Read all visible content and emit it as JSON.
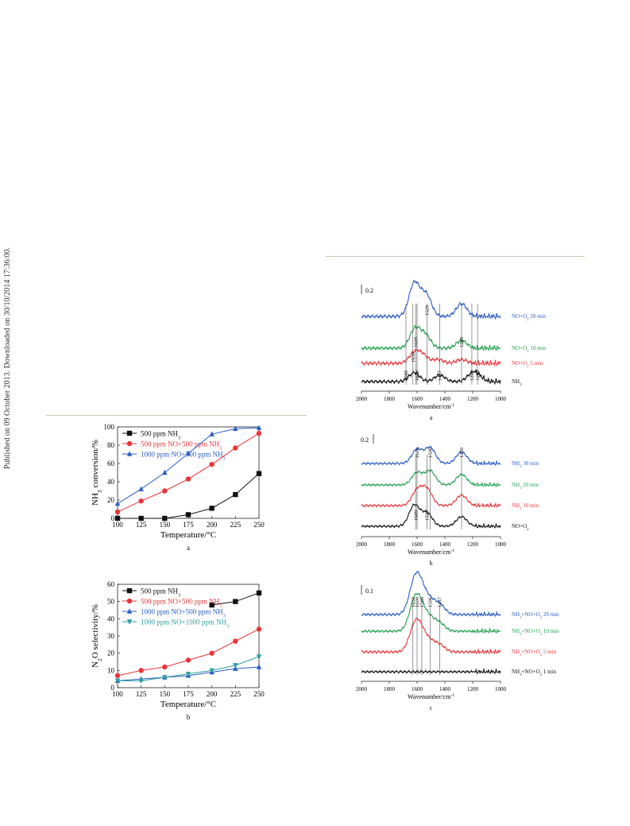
{
  "side_note": "Published on 09 October 2013. Downloaded on 30/10/2014 17:36:00.",
  "colors": {
    "black": "#111111",
    "red": "#e8353a",
    "blue": "#2a5cc4",
    "green": "#25a050",
    "teal": "#2f9e9e",
    "navy": "#2a3f9e"
  },
  "chart_data": [
    {
      "type": "line",
      "panel_label": "a",
      "xlabel": "Temperature/°C",
      "ylabel": "NH3 conversion/%",
      "xlim": [
        100,
        250
      ],
      "ylim": [
        0,
        100
      ],
      "x": [
        100,
        125,
        150,
        175,
        200,
        225,
        250
      ],
      "xticks": [
        "100",
        "125",
        "150",
        "175",
        "200",
        "225",
        "250"
      ],
      "yticks": [
        "0",
        "20",
        "40",
        "60",
        "80",
        "100"
      ],
      "legend_position": "top-left",
      "series": [
        {
          "name": "500 ppm NH3",
          "marker": "square",
          "color": "#111111",
          "values": [
            0,
            0,
            0,
            4,
            11,
            26,
            49
          ]
        },
        {
          "name": "500 ppm NO+500 ppm NH3",
          "marker": "circle",
          "color": "#e8353a",
          "values": [
            7,
            19,
            30,
            43,
            59,
            77,
            93
          ]
        },
        {
          "name": "1000 ppm NO+500 ppm NH3",
          "marker": "triangle",
          "color": "#2a5cc4",
          "values": [
            16,
            32,
            50,
            71,
            92,
            98,
            99
          ]
        }
      ]
    },
    {
      "type": "line",
      "panel_label": "b",
      "xlabel": "Temperature/°C",
      "ylabel": "N2O selectivity/%",
      "xlim": [
        100,
        250
      ],
      "ylim": [
        0,
        60
      ],
      "x": [
        100,
        125,
        150,
        175,
        200,
        225,
        250
      ],
      "xticks": [
        "100",
        "125",
        "150",
        "175",
        "200",
        "225",
        "250"
      ],
      "yticks": [
        "0",
        "10",
        "20",
        "30",
        "40",
        "50",
        "60"
      ],
      "legend_position": "top-left",
      "series": [
        {
          "name": "500 ppm NH3",
          "marker": "square",
          "color": "#111111",
          "values": [
            null,
            null,
            null,
            null,
            48,
            50,
            55
          ]
        },
        {
          "name": "500 ppm NO+500 ppm NH3",
          "marker": "circle",
          "color": "#e8353a",
          "values": [
            7,
            10,
            12,
            16,
            20,
            27,
            34
          ]
        },
        {
          "name": "1000 ppm NO+500 ppm NH3",
          "marker": "triangle",
          "color": "#2a5cc4",
          "values": [
            4,
            5,
            6,
            7,
            9,
            11,
            12
          ]
        },
        {
          "name": "1000 ppm NO+1000 ppm NH3",
          "marker": "triangle-down",
          "color": "#2f9e9e",
          "values": [
            4,
            4,
            6,
            8,
            10,
            13,
            18
          ]
        }
      ]
    },
    {
      "type": "line",
      "panel_label": "a",
      "xlabel": "Wavenumber/cm-1",
      "xlim": [
        2000,
        1000
      ],
      "xticks": [
        "2000",
        "1800",
        "1600",
        "1400",
        "1200",
        "1000"
      ],
      "scale_bar": "0.2",
      "peak_labels": [
        {
          "text": "1529",
          "x": 1529,
          "trace": 0
        },
        {
          "text": "1609",
          "x": 1609,
          "trace": 1
        },
        {
          "text": "1280",
          "x": 1280,
          "trace": 1
        },
        {
          "text": "1630",
          "x": 1630,
          "trace": 2
        },
        {
          "text": "1600",
          "x": 1600,
          "trace": 3
        },
        {
          "text": "1437",
          "x": 1437,
          "trace": 3
        },
        {
          "text": "1206",
          "x": 1206,
          "trace": 3
        },
        {
          "text": "1165",
          "x": 1165,
          "trace": 3
        },
        {
          "text": "1680",
          "x": 1680,
          "trace": 3
        }
      ],
      "series": [
        {
          "name": "NO+O2 20 min",
          "color": "#2a5cc4",
          "peaks": [
            [
              1620,
              1.3
            ],
            [
              1535,
              0.85
            ],
            [
              1280,
              0.5
            ]
          ]
        },
        {
          "name": "NO+O2 10 min",
          "color": "#25a050",
          "peaks": [
            [
              1615,
              0.75
            ],
            [
              1540,
              0.5
            ],
            [
              1280,
              0.3
            ]
          ]
        },
        {
          "name": "NO+O2 5 min",
          "color": "#e8353a",
          "peaks": [
            [
              1620,
              0.4
            ],
            [
              1560,
              0.3
            ],
            [
              1450,
              0.15
            ],
            [
              1280,
              0.15
            ]
          ]
        },
        {
          "name": "NH3",
          "color": "#111111",
          "peaks": [
            [
              1620,
              0.35
            ],
            [
              1437,
              0.25
            ],
            [
              1206,
              0.25
            ],
            [
              1165,
              0.2
            ]
          ]
        }
      ]
    },
    {
      "type": "line",
      "panel_label": "b",
      "xlabel": "Wavenumber/cm-1",
      "xlim": [
        2000,
        1000
      ],
      "xticks": [
        "2000",
        "1800",
        "1600",
        "1400",
        "1200",
        "1000"
      ],
      "scale_bar": "0.2",
      "peak_labels": [
        {
          "text": "1600",
          "x": 1600,
          "trace": 0
        },
        {
          "text": "1506",
          "x": 1506,
          "trace": 0
        },
        {
          "text": "1280",
          "x": 1280,
          "trace": 0
        },
        {
          "text": "1609",
          "x": 1609,
          "trace": 3
        },
        {
          "text": "1529",
          "x": 1529,
          "trace": 3
        }
      ],
      "series": [
        {
          "name": "NH3 30 min",
          "color": "#2a5cc4",
          "peaks": [
            [
              1600,
              0.8
            ],
            [
              1506,
              0.9
            ],
            [
              1280,
              0.65
            ]
          ]
        },
        {
          "name": "NH3 20 min",
          "color": "#25a050",
          "peaks": [
            [
              1600,
              0.7
            ],
            [
              1506,
              0.8
            ],
            [
              1280,
              0.6
            ]
          ]
        },
        {
          "name": "NH3 10 min",
          "color": "#e8353a",
          "peaks": [
            [
              1600,
              0.85
            ],
            [
              1529,
              0.9
            ],
            [
              1280,
              0.6
            ]
          ]
        },
        {
          "name": "NO+O2",
          "color": "#111111",
          "peaks": [
            [
              1620,
              1.2
            ],
            [
              1529,
              0.75
            ],
            [
              1280,
              0.55
            ]
          ]
        }
      ]
    },
    {
      "type": "line",
      "panel_label": "c",
      "xlabel": "Wavenumber/cm-1",
      "xlim": [
        2000,
        1000
      ],
      "xticks": [
        "2000",
        "1800",
        "1600",
        "1400",
        "1200",
        "1000"
      ],
      "scale_bar": "0.1",
      "peak_labels": [
        {
          "text": "1630",
          "x": 1630,
          "trace": 0
        },
        {
          "text": "1600",
          "x": 1600,
          "trace": 0
        },
        {
          "text": "1566",
          "x": 1566,
          "trace": 0
        },
        {
          "text": "1506",
          "x": 1506,
          "trace": 0
        },
        {
          "text": "1437",
          "x": 1437,
          "trace": 0
        }
      ],
      "series": [
        {
          "name": "NH3+NO+O2 20 min",
          "color": "#2a5cc4",
          "peaks": [
            [
              1630,
              0.9
            ],
            [
              1600,
              1.0
            ],
            [
              1566,
              0.8
            ],
            [
              1506,
              0.6
            ],
            [
              1437,
              0.5
            ]
          ]
        },
        {
          "name": "NH3+NO+O2 10 min",
          "color": "#25a050",
          "peaks": [
            [
              1630,
              0.8
            ],
            [
              1600,
              0.9
            ],
            [
              1566,
              0.7
            ],
            [
              1506,
              0.55
            ],
            [
              1437,
              0.4
            ]
          ]
        },
        {
          "name": "NH3+NO+O2 5 min",
          "color": "#e8353a",
          "peaks": [
            [
              1630,
              0.7
            ],
            [
              1600,
              0.8
            ],
            [
              1566,
              0.6
            ],
            [
              1506,
              0.45
            ],
            [
              1437,
              0.35
            ]
          ]
        },
        {
          "name": "NH3+NO+O2 1 min",
          "color": "#111111",
          "peaks": []
        }
      ]
    }
  ]
}
